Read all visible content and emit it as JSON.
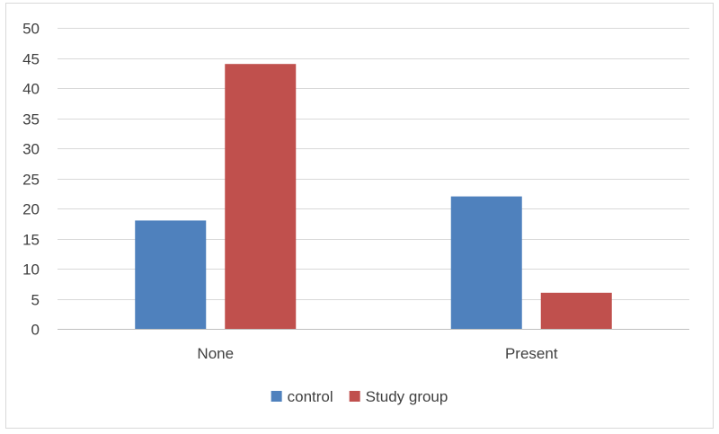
{
  "chart_data": {
    "type": "bar",
    "categories": [
      "None",
      "Present"
    ],
    "series": [
      {
        "name": "control",
        "values": [
          18,
          22
        ],
        "color": "#4f81bd"
      },
      {
        "name": "Study group",
        "values": [
          44,
          6
        ],
        "color": "#c0504d"
      }
    ],
    "title": "",
    "xlabel": "",
    "ylabel": "",
    "ylim": [
      0,
      50
    ],
    "yticks": [
      0,
      5,
      10,
      15,
      20,
      25,
      30,
      35,
      40,
      45,
      50
    ],
    "grid": true,
    "legend_position": "bottom"
  }
}
